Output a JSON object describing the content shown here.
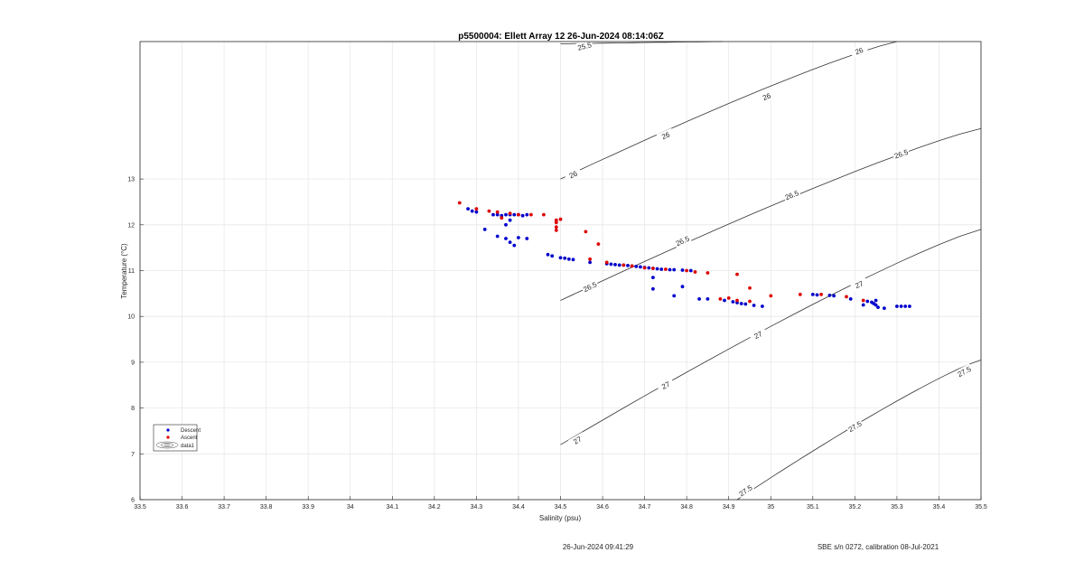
{
  "chart_data": {
    "type": "scatter",
    "title": "p5500004: Ellett Array 12 26-Jun-2024 08:14:06Z",
    "xlabel": "Salinity (psu)",
    "ylabel": "Temperature (°C)",
    "xlim": [
      33.5,
      35.5
    ],
    "ylim": [
      6,
      16
    ],
    "xticks": [
      "33.5",
      "33.6",
      "33.7",
      "33.8",
      "33.9",
      "34",
      "34.1",
      "34.2",
      "34.3",
      "34.4",
      "34.5",
      "34.6",
      "34.7",
      "34.8",
      "34.9",
      "35",
      "35.1",
      "35.2",
      "35.3",
      "35.4",
      "35.5"
    ],
    "yticks": [
      "6",
      "7",
      "8",
      "9",
      "10",
      "11",
      "12",
      "13"
    ],
    "grid": true,
    "legend_position": "bottom-left",
    "legend": [
      "Descent",
      "Ascent",
      "data1"
    ],
    "series": [
      {
        "name": "Descent",
        "color": "#0000cc",
        "points": [
          [
            34.28,
            12.35
          ],
          [
            34.29,
            12.3
          ],
          [
            34.3,
            12.28
          ],
          [
            34.32,
            11.9
          ],
          [
            34.34,
            12.22
          ],
          [
            34.35,
            12.22
          ],
          [
            34.36,
            12.2
          ],
          [
            34.37,
            12.22
          ],
          [
            34.38,
            12.22
          ],
          [
            34.39,
            12.22
          ],
          [
            34.4,
            12.22
          ],
          [
            34.41,
            12.2
          ],
          [
            34.42,
            12.22
          ],
          [
            34.35,
            11.75
          ],
          [
            34.37,
            11.7
          ],
          [
            34.38,
            11.62
          ],
          [
            34.39,
            11.55
          ],
          [
            34.4,
            11.72
          ],
          [
            34.42,
            11.7
          ],
          [
            34.37,
            12.0
          ],
          [
            34.38,
            12.1
          ],
          [
            34.47,
            11.35
          ],
          [
            34.48,
            11.32
          ],
          [
            34.5,
            11.28
          ],
          [
            34.51,
            11.27
          ],
          [
            34.52,
            11.25
          ],
          [
            34.53,
            11.24
          ],
          [
            34.57,
            11.18
          ],
          [
            34.61,
            11.15
          ],
          [
            34.62,
            11.14
          ],
          [
            34.63,
            11.13
          ],
          [
            34.64,
            11.12
          ],
          [
            34.65,
            11.12
          ],
          [
            34.66,
            11.11
          ],
          [
            34.67,
            11.1
          ],
          [
            34.68,
            11.09
          ],
          [
            34.69,
            11.08
          ],
          [
            34.7,
            11.07
          ],
          [
            34.71,
            11.06
          ],
          [
            34.72,
            11.05
          ],
          [
            34.73,
            11.04
          ],
          [
            34.74,
            11.03
          ],
          [
            34.76,
            11.02
          ],
          [
            34.77,
            11.02
          ],
          [
            34.79,
            11.01
          ],
          [
            34.81,
            11.0
          ],
          [
            34.72,
            10.85
          ],
          [
            34.72,
            10.6
          ],
          [
            34.77,
            10.45
          ],
          [
            34.79,
            10.65
          ],
          [
            34.83,
            10.38
          ],
          [
            34.85,
            10.38
          ],
          [
            34.89,
            10.35
          ],
          [
            34.91,
            10.32
          ],
          [
            34.92,
            10.3
          ],
          [
            34.93,
            10.28
          ],
          [
            34.94,
            10.27
          ],
          [
            34.96,
            10.24
          ],
          [
            34.98,
            10.22
          ],
          [
            35.1,
            10.48
          ],
          [
            35.11,
            10.47
          ],
          [
            35.14,
            10.46
          ],
          [
            35.15,
            10.45
          ],
          [
            35.19,
            10.38
          ],
          [
            35.22,
            10.25
          ],
          [
            35.23,
            10.33
          ],
          [
            35.24,
            10.31
          ],
          [
            35.245,
            10.28
          ],
          [
            35.25,
            10.25
          ],
          [
            35.255,
            10.2
          ],
          [
            35.25,
            10.35
          ],
          [
            35.27,
            10.18
          ],
          [
            35.3,
            10.22
          ],
          [
            35.31,
            10.22
          ],
          [
            35.32,
            10.22
          ],
          [
            35.33,
            10.22
          ]
        ]
      },
      {
        "name": "Ascent",
        "color": "#dd0000",
        "points": [
          [
            34.26,
            12.48
          ],
          [
            34.3,
            12.35
          ],
          [
            34.33,
            12.3
          ],
          [
            34.35,
            12.28
          ],
          [
            34.36,
            12.15
          ],
          [
            34.38,
            12.25
          ],
          [
            34.4,
            12.22
          ],
          [
            34.43,
            12.22
          ],
          [
            34.46,
            12.22
          ],
          [
            34.49,
            12.1
          ],
          [
            34.49,
            12.05
          ],
          [
            34.5,
            12.12
          ],
          [
            34.49,
            11.95
          ],
          [
            34.49,
            11.88
          ],
          [
            34.56,
            11.85
          ],
          [
            34.57,
            11.25
          ],
          [
            34.59,
            11.58
          ],
          [
            34.61,
            11.18
          ],
          [
            34.65,
            11.12
          ],
          [
            34.67,
            11.1
          ],
          [
            34.7,
            11.06
          ],
          [
            34.72,
            11.05
          ],
          [
            34.75,
            11.03
          ],
          [
            34.8,
            11.0
          ],
          [
            34.82,
            10.97
          ],
          [
            34.85,
            10.95
          ],
          [
            34.88,
            10.38
          ],
          [
            34.9,
            10.4
          ],
          [
            34.92,
            10.92
          ],
          [
            34.92,
            10.35
          ],
          [
            34.95,
            10.62
          ],
          [
            34.95,
            10.33
          ],
          [
            35.0,
            10.45
          ],
          [
            35.07,
            10.48
          ],
          [
            35.12,
            10.48
          ],
          [
            35.18,
            10.43
          ],
          [
            35.22,
            10.35
          ]
        ]
      }
    ],
    "contours": [
      {
        "sigma": "25.5",
        "labels": [
          "25.5"
        ]
      },
      {
        "sigma": "26",
        "labels": [
          "26",
          "26",
          "26",
          "26"
        ]
      },
      {
        "sigma": "26.5",
        "labels": [
          "26.5",
          "26.5",
          "26.5",
          "26.5"
        ]
      },
      {
        "sigma": "27",
        "labels": [
          "27",
          "27",
          "27",
          "27"
        ]
      },
      {
        "sigma": "27.5",
        "labels": [
          "27.5",
          "27.5",
          "27.5"
        ]
      }
    ]
  },
  "footer": {
    "timestamp": "26-Jun-2024 09:41:29",
    "calibration": "SBE s/n 0272, calibration 08-Jul-2021"
  }
}
